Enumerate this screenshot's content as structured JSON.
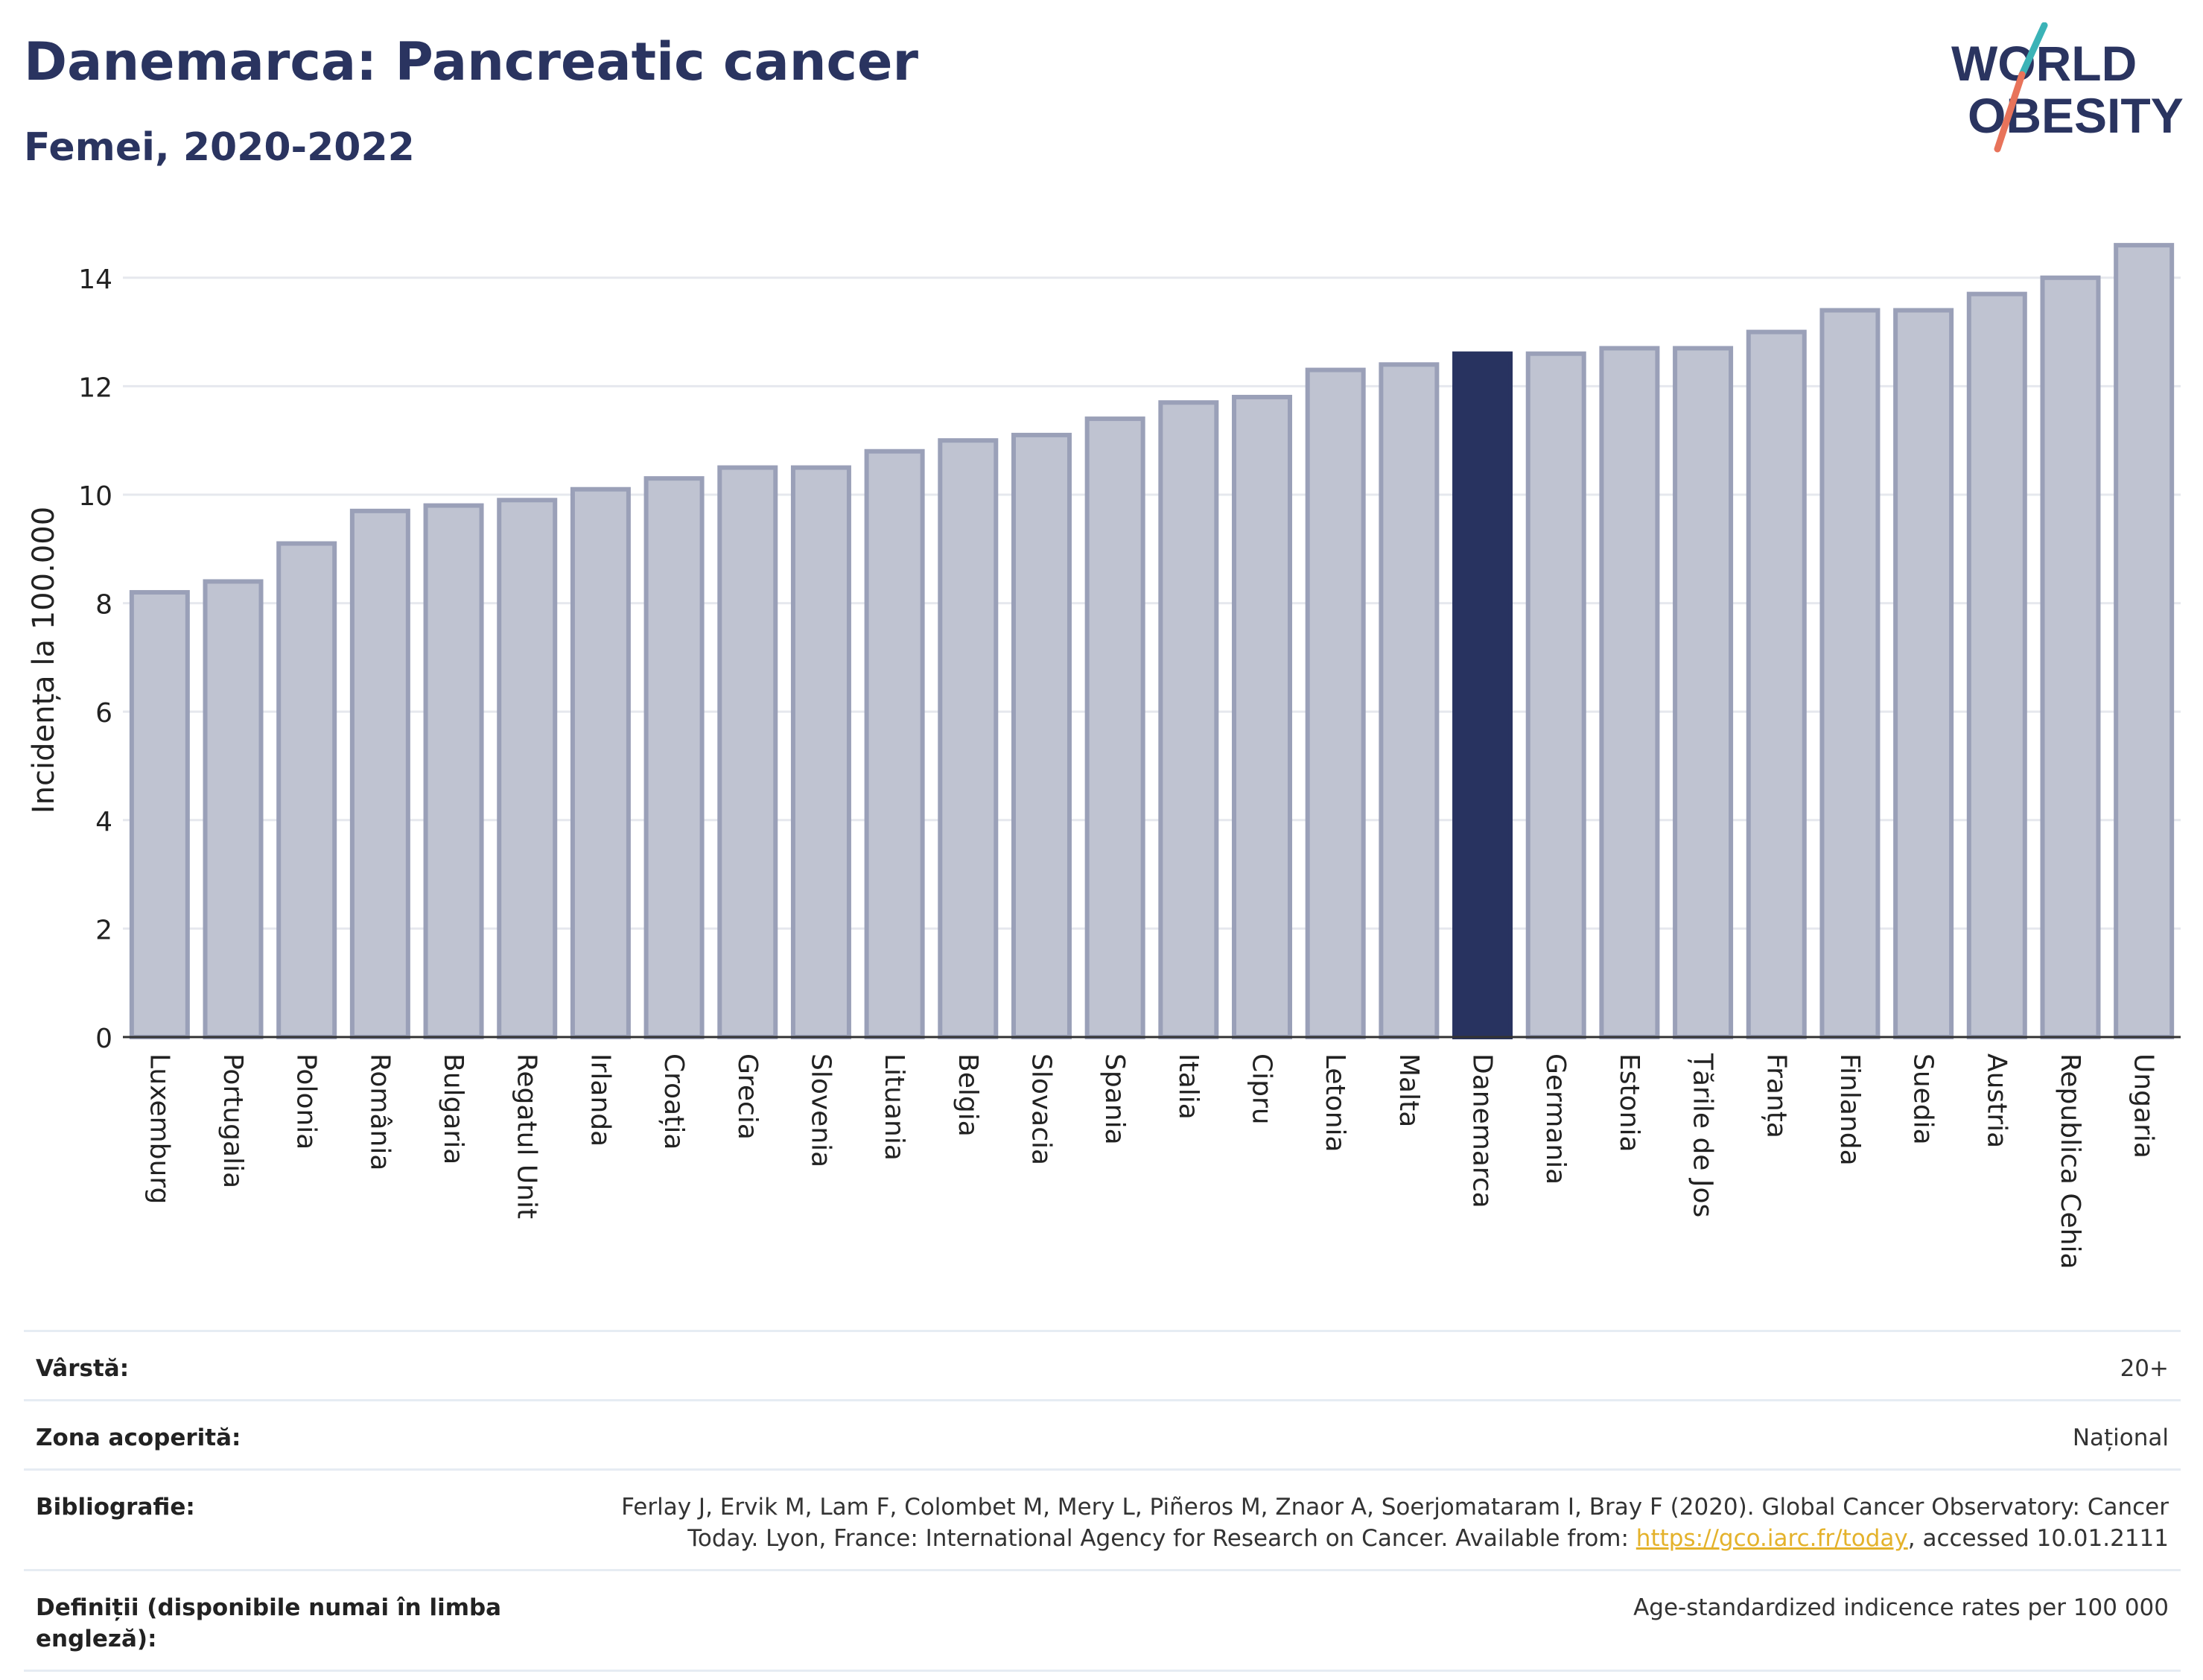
{
  "header": {
    "title": "Danemarca: Pancreatic cancer",
    "subtitle": "Femei, 2020-2022"
  },
  "logo": {
    "line1": "WORLD",
    "line2": "OBESITY",
    "colors": {
      "text": "#2a3460",
      "slash_top": "#3bb3b7",
      "slash_bottom": "#e8735a"
    }
  },
  "colors": {
    "bar_default": "#bfc3d1",
    "bar_border": "#9aa0b8",
    "bar_highlight": "#283360",
    "title": "#2a3460",
    "grid": "#e6e8ee"
  },
  "chart_data": {
    "type": "bar",
    "title": "Danemarca: Pancreatic cancer",
    "subtitle": "Femei, 2020-2022",
    "xlabel": "",
    "ylabel": "Incidența la 100.000",
    "ylim": [
      0,
      15
    ],
    "yticks": [
      0,
      2,
      4,
      6,
      8,
      10,
      12,
      14
    ],
    "grid": true,
    "highlight": "Danemarca",
    "categories": [
      "Luxemburg",
      "Portugalia",
      "Polonia",
      "România",
      "Bulgaria",
      "Regatul Unit",
      "Irlanda",
      "Croația",
      "Grecia",
      "Slovenia",
      "Lituania",
      "Belgia",
      "Slovacia",
      "Spania",
      "Italia",
      "Cipru",
      "Letonia",
      "Malta",
      "Danemarca",
      "Germania",
      "Estonia",
      "Țările de Jos",
      "Franța",
      "Finlanda",
      "Suedia",
      "Austria",
      "Republica Cehia",
      "Ungaria"
    ],
    "values": [
      8.2,
      8.4,
      9.1,
      9.7,
      9.8,
      9.9,
      10.1,
      10.3,
      10.5,
      10.5,
      10.8,
      11.0,
      11.1,
      11.4,
      11.7,
      11.8,
      12.3,
      12.4,
      12.6,
      12.6,
      12.7,
      12.7,
      13.0,
      13.4,
      13.4,
      13.7,
      14.0,
      14.6
    ]
  },
  "meta": {
    "rows": [
      {
        "label": "Vârstă:",
        "value": "20+"
      },
      {
        "label": "Zona acoperită:",
        "value": "Național"
      },
      {
        "label": "Bibliografie:",
        "value_before": "Ferlay J, Ervik M, Lam F, Colombet M, Mery L, Piñeros M, Znaor A, Soerjomataram I, Bray F (2020). Global Cancer Observatory: Cancer Today. Lyon, France: International Agency for Research on Cancer. Available from: ",
        "link": "https://gco.iarc.fr/today",
        "value_after": ", accessed 10.01.2111"
      },
      {
        "label": "Definiții (disponibile numai în limba engleză):",
        "value": "Age-standardized indicence rates per 100 000"
      }
    ]
  }
}
